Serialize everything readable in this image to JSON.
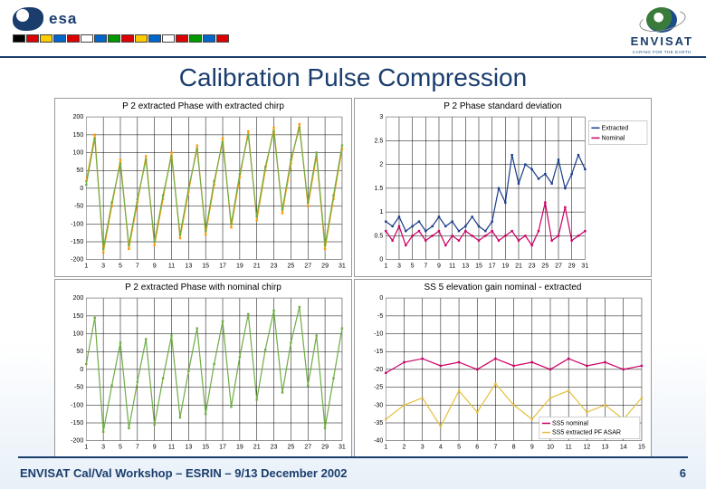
{
  "header": {
    "esa_text": "esa",
    "flag_colors": [
      "#000",
      "#d00",
      "#fc0",
      "#06c",
      "#d00",
      "#fff",
      "#06c",
      "#090",
      "#d00",
      "#fc0",
      "#06c",
      "#fff",
      "#d00",
      "#090",
      "#06c",
      "#d00"
    ],
    "envisat_text": "ENVISAT",
    "envisat_tag": "CARING FOR THE EARTH"
  },
  "title": "Calibration Pulse Compression",
  "footer": {
    "text": "ENVISAT Cal/Val Workshop – ESRIN – 9/13 December 2002",
    "page": "6"
  },
  "charts": {
    "tl": {
      "title": "P 2 extracted Phase with extracted chirp",
      "ylim": [
        -200,
        200
      ],
      "ystep": 50,
      "xlim": [
        1,
        31
      ],
      "xstep": 2,
      "series": [
        {
          "color": "#ff9900",
          "values": [
            20,
            150,
            -180,
            -50,
            80,
            -170,
            -40,
            90,
            -160,
            -30,
            100,
            -140,
            -10,
            120,
            -130,
            10,
            140,
            -110,
            30,
            160,
            -90,
            50,
            170,
            -70,
            70,
            180,
            -50,
            90,
            -170,
            -30,
            110
          ]
        },
        {
          "color": "#70ad47",
          "values": [
            10,
            140,
            -170,
            -40,
            70,
            -160,
            -30,
            80,
            -150,
            -20,
            90,
            -130,
            0,
            110,
            -120,
            20,
            130,
            -100,
            40,
            150,
            -80,
            60,
            160,
            -60,
            80,
            170,
            -40,
            100,
            -160,
            -20,
            120
          ]
        }
      ]
    },
    "tr": {
      "title": "P 2 Phase standard deviation",
      "ylim": [
        0,
        3
      ],
      "ystep": 0.5,
      "xlim": [
        1,
        31
      ],
      "xstep": 2,
      "legend": [
        "Extracted",
        "Nominal"
      ],
      "legend_colors": [
        "#1a3d8a",
        "#cc0066"
      ],
      "series": [
        {
          "color": "#1a3d8a",
          "values": [
            0.8,
            0.7,
            0.9,
            0.6,
            0.7,
            0.8,
            0.6,
            0.7,
            0.9,
            0.7,
            0.8,
            0.6,
            0.7,
            0.9,
            0.7,
            0.6,
            0.8,
            1.5,
            1.2,
            2.2,
            1.6,
            2.0,
            1.9,
            1.7,
            1.8,
            1.6,
            2.1,
            1.5,
            1.8,
            2.2,
            1.9
          ]
        },
        {
          "color": "#cc0066",
          "values": [
            0.6,
            0.4,
            0.7,
            0.3,
            0.5,
            0.6,
            0.4,
            0.5,
            0.6,
            0.3,
            0.5,
            0.4,
            0.6,
            0.5,
            0.4,
            0.5,
            0.6,
            0.4,
            0.5,
            0.6,
            0.4,
            0.5,
            0.3,
            0.6,
            1.2,
            0.4,
            0.5,
            1.1,
            0.4,
            0.5,
            0.6
          ]
        }
      ]
    },
    "bl": {
      "title": "P 2 extracted Phase with nominal chirp",
      "ylim": [
        -200,
        200
      ],
      "ystep": 50,
      "xlim": [
        1,
        31
      ],
      "xstep": 2,
      "series": [
        {
          "color": "#70ad47",
          "values": [
            15,
            145,
            -175,
            -45,
            75,
            -165,
            -35,
            85,
            -155,
            -25,
            95,
            -135,
            -5,
            115,
            -125,
            15,
            135,
            -105,
            35,
            155,
            -85,
            55,
            165,
            -65,
            75,
            175,
            -45,
            95,
            -165,
            -25,
            115
          ]
        }
      ]
    },
    "br": {
      "title": "SS 5 elevation gain nominal - extracted",
      "ylim": [
        -40,
        0
      ],
      "ystep": 5,
      "xlim": [
        1,
        15
      ],
      "xstep": 1,
      "legend": [
        "SS5 nominal",
        "SS5 extracted PF ASAR"
      ],
      "legend_colors": [
        "#cc0066",
        "#e6c040"
      ],
      "series": [
        {
          "color": "#cc0066",
          "values": [
            -21,
            -18,
            -17,
            -19,
            -18,
            -20,
            -17,
            -19,
            -18,
            -20,
            -17,
            -19,
            -18,
            -20,
            -19
          ]
        },
        {
          "color": "#e6c040",
          "values": [
            -34,
            -30,
            -28,
            -36,
            -26,
            -32,
            -24,
            -30,
            -34,
            -28,
            -26,
            -32,
            -30,
            -34,
            -28
          ]
        }
      ]
    }
  }
}
